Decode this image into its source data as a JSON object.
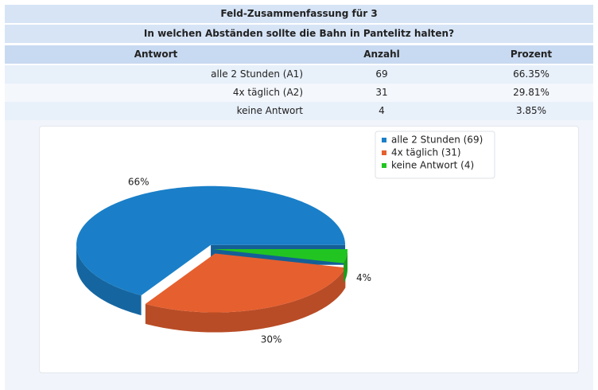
{
  "table": {
    "title": "Feld-Zusammenfassung für 3",
    "question": "In welchen Abständen sollte die Bahn in Pantelitz halten?",
    "columns": [
      "Antwort",
      "Anzahl",
      "Prozent"
    ],
    "rows": [
      [
        "alle 2 Stunden (A1)",
        69,
        "66.35%"
      ],
      [
        "4x täglich (A2)",
        31,
        "29.81%"
      ],
      [
        "keine Antwort",
        4,
        "3.85%"
      ]
    ]
  },
  "chart_data": {
    "type": "pie",
    "categories": [
      "alle 2 Stunden (69)",
      "4x täglich (31)",
      "keine Antwort (4)"
    ],
    "values": [
      66.35,
      29.81,
      3.85
    ],
    "value_labels": [
      "66%",
      "30%",
      "4%"
    ],
    "colors": [
      "#1a7fc8",
      "#e65f2f",
      "#22c422"
    ]
  }
}
